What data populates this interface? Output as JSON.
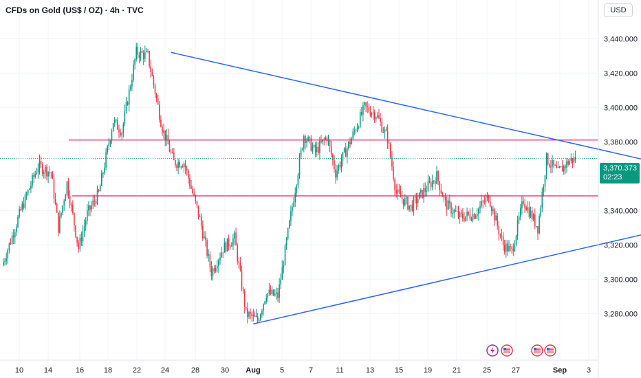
{
  "header": {
    "title": "CFDs on Gold (US$ / OZ) · 4h · TVC",
    "currency_button": "USD"
  },
  "last_price": {
    "value": "3,370.373",
    "countdown": "02:23",
    "color": "#089981"
  },
  "colors": {
    "up": "#089981",
    "down": "#f23645",
    "trendline": "#2962ff",
    "level": "#e91e63"
  },
  "events": [
    {
      "icon": "lightning-icon"
    },
    {
      "icon": "us-flag-icon"
    },
    {
      "icon": "us-flag-icon"
    },
    {
      "icon": "us-flag-icon"
    }
  ],
  "chart_data": {
    "type": "candlestick",
    "title": "CFDs on Gold (US$ / OZ) · 4h · TVC",
    "x_ticks": [
      {
        "label": "10",
        "bold": false
      },
      {
        "label": "14",
        "bold": false
      },
      {
        "label": "16",
        "bold": false
      },
      {
        "label": "18",
        "bold": false
      },
      {
        "label": "22",
        "bold": false
      },
      {
        "label": "24",
        "bold": false
      },
      {
        "label": "28",
        "bold": false
      },
      {
        "label": "30",
        "bold": false
      },
      {
        "label": "Aug",
        "bold": true
      },
      {
        "label": "5",
        "bold": false
      },
      {
        "label": "7",
        "bold": false
      },
      {
        "label": "11",
        "bold": false
      },
      {
        "label": "13",
        "bold": false
      },
      {
        "label": "15",
        "bold": false
      },
      {
        "label": "19",
        "bold": false
      },
      {
        "label": "21",
        "bold": false
      },
      {
        "label": "25",
        "bold": false
      },
      {
        "label": "27",
        "bold": false
      },
      {
        "label": "Sep",
        "bold": true
      },
      {
        "label": "3",
        "bold": false
      }
    ],
    "y_ticks": [
      "3,440.000",
      "3,420.000",
      "3,400.000",
      "3,380.000",
      "3,360.000",
      "3,340.000",
      "3,320.000",
      "3,300.000",
      "3,280.000"
    ],
    "y_tick_values": [
      3440,
      3420,
      3400,
      3380,
      3360,
      3340,
      3320,
      3300,
      3280
    ],
    "ylim": [
      3268,
      3446
    ],
    "grid": true,
    "anchors": [
      [
        0,
        3310
      ],
      [
        12,
        3340
      ],
      [
        24,
        3366
      ],
      [
        33,
        3362
      ],
      [
        38,
        3330
      ],
      [
        44,
        3356
      ],
      [
        52,
        3318
      ],
      [
        58,
        3338
      ],
      [
        66,
        3350
      ],
      [
        76,
        3392
      ],
      [
        82,
        3386
      ],
      [
        92,
        3432
      ],
      [
        100,
        3430
      ],
      [
        110,
        3388
      ],
      [
        118,
        3368
      ],
      [
        125,
        3368
      ],
      [
        136,
        3335
      ],
      [
        144,
        3304
      ],
      [
        152,
        3318
      ],
      [
        160,
        3324
      ],
      [
        168,
        3280
      ],
      [
        176,
        3276
      ],
      [
        182,
        3292
      ],
      [
        190,
        3290
      ],
      [
        198,
        3332
      ],
      [
        208,
        3384
      ],
      [
        216,
        3374
      ],
      [
        224,
        3383
      ],
      [
        230,
        3362
      ],
      [
        240,
        3380
      ],
      [
        250,
        3400
      ],
      [
        258,
        3396
      ],
      [
        266,
        3382
      ],
      [
        272,
        3350
      ],
      [
        282,
        3342
      ],
      [
        292,
        3352
      ],
      [
        300,
        3360
      ],
      [
        306,
        3344
      ],
      [
        316,
        3336
      ],
      [
        326,
        3338
      ],
      [
        336,
        3348
      ],
      [
        346,
        3320
      ],
      [
        352,
        3316
      ],
      [
        360,
        3346
      ],
      [
        370,
        3330
      ],
      [
        376,
        3370
      ],
      [
        384,
        3362
      ],
      [
        392,
        3369
      ],
      [
        396,
        3370
      ]
    ],
    "n_bars": 396,
    "trendlines": [
      {
        "name": "upper-trendline",
        "points": [
          [
            116,
            3432
          ],
          [
            536,
            3352
          ]
        ]
      },
      {
        "name": "lower-trendline",
        "points": [
          [
            173,
            3274
          ],
          [
            536,
            3344
          ]
        ]
      }
    ],
    "horizontal_levels": [
      3381,
      3348.5
    ],
    "current_price": 3370.373
  }
}
